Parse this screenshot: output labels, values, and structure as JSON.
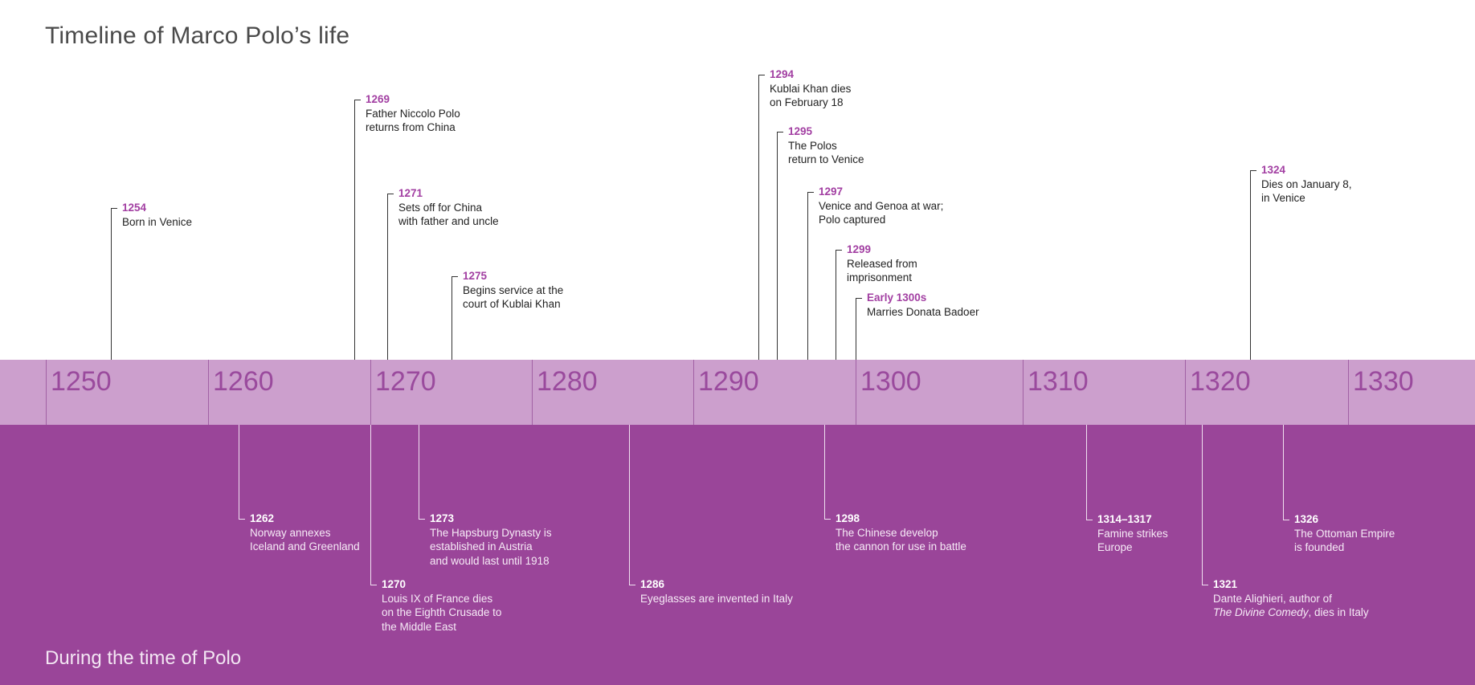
{
  "title": "Timeline of Marco Polo’s life",
  "footer": "During the time of Polo",
  "colors": {
    "band": "#cc9fcd",
    "bottom": "#9a4599",
    "accent": "#a23fa2"
  },
  "decades": [
    "1250",
    "1260",
    "1270",
    "1280",
    "1290",
    "1300",
    "1310",
    "1320",
    "1330"
  ],
  "life_events": [
    {
      "year": "1254",
      "text": "Born in Venice"
    },
    {
      "year": "1269",
      "text": "Father Niccolo Polo\nreturns from China"
    },
    {
      "year": "1271",
      "text": "Sets off for China\nwith father and uncle"
    },
    {
      "year": "1275",
      "text": "Begins service at the\ncourt of Kublai Khan"
    },
    {
      "year": "1294",
      "text": "Kublai Khan dies\non February 18"
    },
    {
      "year": "1295",
      "text": "The Polos\nreturn to Venice"
    },
    {
      "year": "1297",
      "text": "Venice and Genoa at war;\nPolo captured"
    },
    {
      "year": "1299",
      "text": "Released from\nimprisonment"
    },
    {
      "year": "Early 1300s",
      "text": "Marries Donata Badoer"
    },
    {
      "year": "1324",
      "text": "Dies on January 8,\nin Venice"
    }
  ],
  "world_events": [
    {
      "year": "1262",
      "text": "Norway annexes\nIceland and Greenland"
    },
    {
      "year": "1270",
      "text": "Louis IX of France dies\non the Eighth Crusade to\nthe Middle East"
    },
    {
      "year": "1273",
      "text": "The Hapsburg Dynasty is\nestablished in Austria\nand would last until 1918"
    },
    {
      "year": "1286",
      "text": "Eyeglasses are invented in Italy"
    },
    {
      "year": "1298",
      "text": "The Chinese develop\nthe cannon for use in battle"
    },
    {
      "year": "1314–1317",
      "text": "Famine strikes\nEurope"
    },
    {
      "year": "1321",
      "text": "Dante Alighieri, author of",
      "text_italic": "The Divine Comedy",
      "text_tail": ", dies in Italy"
    },
    {
      "year": "1326",
      "text": "The Ottoman Empire\nis founded"
    }
  ]
}
